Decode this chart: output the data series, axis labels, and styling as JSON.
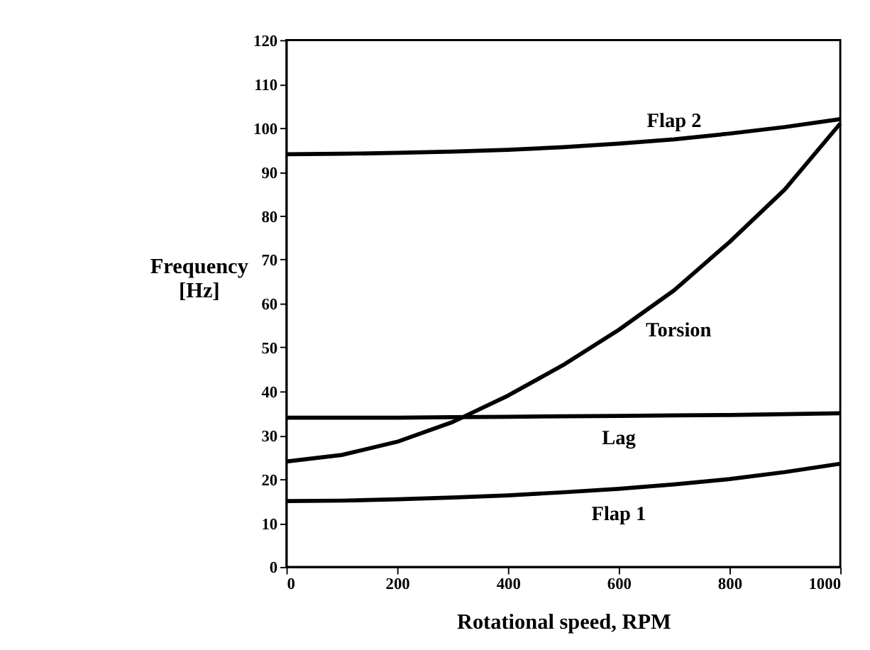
{
  "chart_data": {
    "type": "line",
    "xlabel": "Rotational speed, RPM",
    "ylabel": "Frequency [Hz]",
    "x": [
      0,
      100,
      200,
      300,
      400,
      500,
      600,
      700,
      800,
      900,
      1000
    ],
    "series": [
      {
        "name": "Flap 2",
        "color": "#000000",
        "values": [
          94,
          94.1,
          94.3,
          94.6,
          95,
          95.6,
          96.4,
          97.4,
          98.7,
          100.2,
          102
        ]
      },
      {
        "name": "Torsion",
        "color": "#000000",
        "values": [
          24,
          25.5,
          28.5,
          33,
          39,
          46,
          54,
          63,
          74,
          86,
          101
        ]
      },
      {
        "name": "Lag",
        "color": "#000000",
        "values": [
          34,
          34,
          34,
          34.1,
          34.2,
          34.3,
          34.4,
          34.5,
          34.6,
          34.8,
          35
        ]
      },
      {
        "name": "Flap 1",
        "color": "#000000",
        "values": [
          15,
          15.1,
          15.4,
          15.8,
          16.3,
          17,
          17.8,
          18.8,
          20,
          21.6,
          23.5
        ]
      }
    ],
    "xlim": [
      0,
      1000
    ],
    "xticks": [
      0,
      200,
      400,
      600,
      800,
      1000
    ],
    "ylim": [
      0,
      120
    ],
    "yticks": [
      0,
      10,
      20,
      30,
      40,
      50,
      60,
      70,
      80,
      90,
      100,
      110,
      120
    ],
    "grid": false,
    "legend": false,
    "marker": "none",
    "line_style": "solid"
  }
}
